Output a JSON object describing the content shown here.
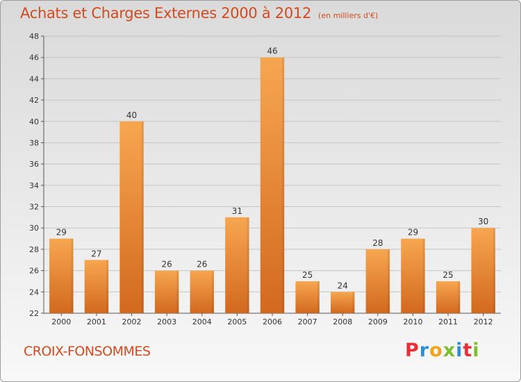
{
  "header": {
    "title": "Achats et Charges Externes 2000 à 2012",
    "unit": "(en milliers d'€)"
  },
  "footer": {
    "commune": "CROIX-FONSOMMES",
    "logo_text": "Proxiti",
    "logo_colors": [
      "#e8303a",
      "#2d8fd6",
      "#f3a21b",
      "#7cbf2f",
      "#2d8fd6",
      "#e8303a",
      "#7cbf2f"
    ]
  },
  "chart_data": {
    "type": "bar",
    "title": "Achats et Charges Externes 2000 à 2012",
    "subtitle": "(en milliers d'€)",
    "xlabel": "",
    "ylabel": "",
    "categories": [
      "2000",
      "2001",
      "2002",
      "2003",
      "2004",
      "2005",
      "2006",
      "2007",
      "2008",
      "2009",
      "2010",
      "2011",
      "2012"
    ],
    "values": [
      29,
      27,
      40,
      26,
      26,
      31,
      46,
      25,
      24,
      28,
      29,
      25,
      30
    ],
    "ylim": [
      22,
      48
    ],
    "yticks": [
      22,
      24,
      26,
      28,
      30,
      32,
      34,
      36,
      38,
      40,
      42,
      44,
      46,
      48
    ],
    "grid": true,
    "bar_color_top": "#f7a650",
    "bar_color_bottom": "#d2691e"
  }
}
